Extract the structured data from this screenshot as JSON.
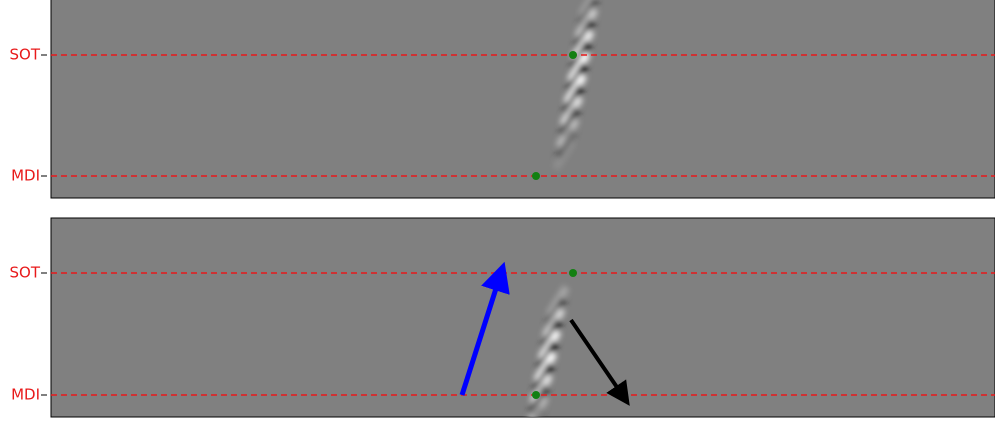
{
  "panels": [
    {
      "labels": [
        "SOT",
        "MDI"
      ]
    },
    {
      "labels": [
        "SOT",
        "MDI"
      ]
    }
  ]
}
